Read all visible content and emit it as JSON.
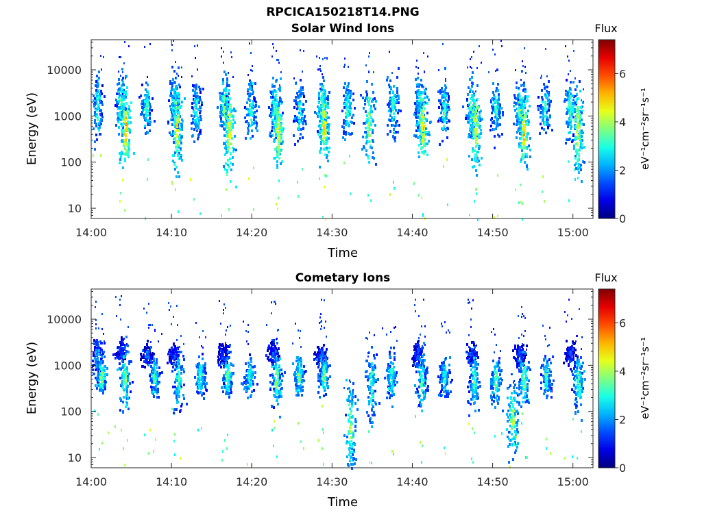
{
  "figure": {
    "title": "RPCICA150218T14.PNG"
  },
  "chart_data": [
    {
      "type": "heatmap",
      "title": "Solar Wind Ions",
      "xlabel": "Time",
      "ylabel": "Energy (eV)",
      "x_tick_labels": [
        "14:00",
        "14:10",
        "14:20",
        "14:30",
        "14:40",
        "14:50",
        "15:00"
      ],
      "y_tick_labels": [
        "10",
        "100",
        "1000",
        "10000"
      ],
      "y_scale": "log",
      "ylim": [
        6,
        45000
      ],
      "xlim_minutes": [
        0,
        62.5
      ],
      "colorbar": {
        "title": "Flux",
        "label": "eV⁻¹cm⁻²sr⁻¹s⁻¹",
        "ticks": [
          "0",
          "2",
          "4",
          "6"
        ],
        "range": [
          0,
          7.4
        ],
        "colormap": "jet"
      },
      "bursts": [
        {
          "t": 0.7,
          "e": 1700,
          "flux": 3.2,
          "spread_e": 0.35
        },
        {
          "t": 3.6,
          "e": 1800,
          "flux": 3.6,
          "spread_e": 0.3
        },
        {
          "t": 4.2,
          "e": 550,
          "flux": 5.2,
          "spread_e": 0.4
        },
        {
          "t": 6.8,
          "e": 1500,
          "flux": 3.4,
          "spread_e": 0.25
        },
        {
          "t": 10.3,
          "e": 1900,
          "flux": 3.5,
          "spread_e": 0.3
        },
        {
          "t": 10.6,
          "e": 600,
          "flux": 4.6,
          "spread_e": 0.45
        },
        {
          "t": 13.0,
          "e": 1400,
          "flux": 3.2,
          "spread_e": 0.3
        },
        {
          "t": 16.5,
          "e": 1700,
          "flux": 3.8,
          "spread_e": 0.3
        },
        {
          "t": 17.1,
          "e": 500,
          "flux": 4.9,
          "spread_e": 0.4
        },
        {
          "t": 19.8,
          "e": 1500,
          "flux": 3.3,
          "spread_e": 0.3
        },
        {
          "t": 22.8,
          "e": 1600,
          "flux": 3.6,
          "spread_e": 0.3
        },
        {
          "t": 23.2,
          "e": 520,
          "flux": 4.8,
          "spread_e": 0.4
        },
        {
          "t": 25.9,
          "e": 1400,
          "flux": 3.2,
          "spread_e": 0.3
        },
        {
          "t": 28.7,
          "e": 1600,
          "flux": 3.7,
          "spread_e": 0.3
        },
        {
          "t": 28.9,
          "e": 700,
          "flux": 5.0,
          "spread_e": 0.35
        },
        {
          "t": 31.8,
          "e": 1500,
          "flux": 3.3,
          "spread_e": 0.3
        },
        {
          "t": 34.5,
          "e": 700,
          "flux": 4.0,
          "spread_e": 0.45
        },
        {
          "t": 37.5,
          "e": 1600,
          "flux": 3.4,
          "spread_e": 0.3
        },
        {
          "t": 40.8,
          "e": 1600,
          "flux": 3.7,
          "spread_e": 0.3
        },
        {
          "t": 41.2,
          "e": 650,
          "flux": 4.8,
          "spread_e": 0.4
        },
        {
          "t": 43.9,
          "e": 1400,
          "flux": 3.2,
          "spread_e": 0.3
        },
        {
          "t": 47.3,
          "e": 1500,
          "flux": 3.7,
          "spread_e": 0.3
        },
        {
          "t": 47.8,
          "e": 600,
          "flux": 4.7,
          "spread_e": 0.45
        },
        {
          "t": 50.3,
          "e": 1500,
          "flux": 3.3,
          "spread_e": 0.3
        },
        {
          "t": 53.3,
          "e": 1500,
          "flux": 3.7,
          "spread_e": 0.3
        },
        {
          "t": 53.8,
          "e": 520,
          "flux": 5.0,
          "spread_e": 0.4
        },
        {
          "t": 56.4,
          "e": 1400,
          "flux": 3.3,
          "spread_e": 0.3
        },
        {
          "t": 59.6,
          "e": 1400,
          "flux": 3.6,
          "spread_e": 0.3
        },
        {
          "t": 60.5,
          "e": 480,
          "flux": 4.6,
          "spread_e": 0.45
        }
      ]
    },
    {
      "type": "heatmap",
      "title": "Cometary Ions",
      "xlabel": "Time",
      "ylabel": "Energy (eV)",
      "x_tick_labels": [
        "14:00",
        "14:10",
        "14:20",
        "14:30",
        "14:40",
        "14:50",
        "15:00"
      ],
      "y_tick_labels": [
        "10",
        "100",
        "1000",
        "10000"
      ],
      "y_scale": "log",
      "ylim": [
        6,
        45000
      ],
      "xlim_minutes": [
        0,
        62.5
      ],
      "colorbar": {
        "title": "Flux",
        "label": "eV⁻¹cm⁻²sr⁻¹s⁻¹",
        "ticks": [
          "0",
          "2",
          "4",
          "6"
        ],
        "range": [
          0,
          7.4
        ],
        "colormap": "jet"
      },
      "bursts": [
        {
          "t": 0.7,
          "e": 1600,
          "flux": 2.4,
          "spread_e": 0.2
        },
        {
          "t": 1.2,
          "e": 600,
          "flux": 3.8,
          "spread_e": 0.2
        },
        {
          "t": 3.6,
          "e": 2200,
          "flux": 1.5,
          "spread_e": 0.12
        },
        {
          "t": 4.1,
          "e": 500,
          "flux": 3.7,
          "spread_e": 0.35
        },
        {
          "t": 6.9,
          "e": 1700,
          "flux": 1.6,
          "spread_e": 0.12
        },
        {
          "t": 7.8,
          "e": 600,
          "flux": 3.3,
          "spread_e": 0.2
        },
        {
          "t": 10.2,
          "e": 1800,
          "flux": 1.5,
          "spread_e": 0.12
        },
        {
          "t": 10.8,
          "e": 500,
          "flux": 3.4,
          "spread_e": 0.3
        },
        {
          "t": 13.5,
          "e": 600,
          "flux": 3.4,
          "spread_e": 0.2
        },
        {
          "t": 16.3,
          "e": 1800,
          "flux": 1.5,
          "spread_e": 0.12
        },
        {
          "t": 16.9,
          "e": 600,
          "flux": 3.5,
          "spread_e": 0.25
        },
        {
          "t": 19.6,
          "e": 600,
          "flux": 3.3,
          "spread_e": 0.2
        },
        {
          "t": 22.6,
          "e": 1900,
          "flux": 1.5,
          "spread_e": 0.12
        },
        {
          "t": 23.0,
          "e": 500,
          "flux": 3.7,
          "spread_e": 0.3
        },
        {
          "t": 25.8,
          "e": 650,
          "flux": 3.6,
          "spread_e": 0.2
        },
        {
          "t": 28.6,
          "e": 1800,
          "flux": 1.6,
          "spread_e": 0.12
        },
        {
          "t": 28.9,
          "e": 650,
          "flux": 3.7,
          "spread_e": 0.2
        },
        {
          "t": 32.2,
          "e": 45,
          "flux": 4.0,
          "spread_e": 0.45
        },
        {
          "t": 34.8,
          "e": 400,
          "flux": 3.3,
          "spread_e": 0.4
        },
        {
          "t": 37.3,
          "e": 600,
          "flux": 3.3,
          "spread_e": 0.25
        },
        {
          "t": 40.6,
          "e": 1800,
          "flux": 1.6,
          "spread_e": 0.12
        },
        {
          "t": 41.1,
          "e": 500,
          "flux": 3.4,
          "spread_e": 0.3
        },
        {
          "t": 43.9,
          "e": 600,
          "flux": 3.2,
          "spread_e": 0.2
        },
        {
          "t": 47.3,
          "e": 1800,
          "flux": 1.6,
          "spread_e": 0.12
        },
        {
          "t": 47.6,
          "e": 500,
          "flux": 3.4,
          "spread_e": 0.3
        },
        {
          "t": 50.3,
          "e": 500,
          "flux": 3.4,
          "spread_e": 0.25
        },
        {
          "t": 52.4,
          "e": 70,
          "flux": 4.3,
          "spread_e": 0.35
        },
        {
          "t": 53.3,
          "e": 1800,
          "flux": 1.6,
          "spread_e": 0.12
        },
        {
          "t": 53.8,
          "e": 500,
          "flux": 3.7,
          "spread_e": 0.3
        },
        {
          "t": 56.6,
          "e": 600,
          "flux": 3.3,
          "spread_e": 0.2
        },
        {
          "t": 59.6,
          "e": 1900,
          "flux": 1.5,
          "spread_e": 0.12
        },
        {
          "t": 60.6,
          "e": 450,
          "flux": 3.5,
          "spread_e": 0.3
        }
      ]
    }
  ]
}
